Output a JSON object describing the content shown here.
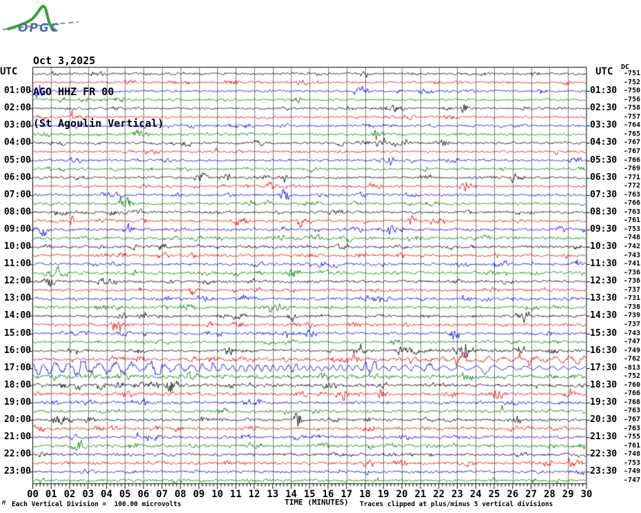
{
  "logo": {
    "text": "OPGC"
  },
  "header": {
    "date": "Oct 3,2025",
    "station": "AGO HHZ FR 00",
    "station_name": "(St Agoulin Vertical)"
  },
  "axis": {
    "utc_left": "UTC",
    "utc_right": "UTC",
    "dc_label": "DC",
    "x_title": "TIME (MINUTES)",
    "x_tick_labels": [
      "00",
      "01",
      "02",
      "03",
      "04",
      "05",
      "06",
      "07",
      "08",
      "09",
      "10",
      "11",
      "12",
      "13",
      "14",
      "15",
      "16",
      "17",
      "18",
      "19",
      "20",
      "21",
      "22",
      "23",
      "24",
      "25",
      "26",
      "27",
      "28",
      "29",
      "30"
    ]
  },
  "footer": {
    "scale_note": "Each Vertical Division =  100.00 microvolts",
    "clip_note": "Traces clipped at plus/minus 5 vertical divisions",
    "corner_mark": "M"
  },
  "colors": {
    "black": "#000000",
    "red": "#e60000",
    "blue": "#0000e0",
    "green": "#007700",
    "grid": "#7b7b7b",
    "border": "#000000",
    "logo_green": "#3aa03a",
    "logo_blue": "#4a6fa5",
    "logo_dash": "#7a8fa6"
  },
  "chart_data": {
    "type": "line",
    "kind": "helicorder",
    "title": "AGO HHZ FR 00 (St Agoulin Vertical) - Oct 3,2025",
    "x_axis": {
      "label": "TIME (MINUTES)",
      "min": 0,
      "max": 30,
      "minutes_per_line": 30
    },
    "amplitude_unit": "vertical divisions of 100.00 microvolts, clipped at +/-5",
    "traces": [
      {
        "start": "00:00",
        "left": "",
        "right": "",
        "dc": -751,
        "color": "black",
        "style": "noise",
        "profile": [
          [
            0,
            1.25
          ],
          [
            30,
            1.25
          ]
        ]
      },
      {
        "start": "00:30",
        "left": "",
        "right": "",
        "dc": -752,
        "color": "red",
        "style": "noise",
        "profile": [
          [
            0,
            1.2
          ],
          [
            30,
            1.2
          ]
        ]
      },
      {
        "start": "01:00",
        "left": "01:00",
        "right": "01:30",
        "dc": -750,
        "color": "blue",
        "style": "noise",
        "profile": [
          [
            0,
            1.25
          ],
          [
            30,
            1.25
          ]
        ]
      },
      {
        "start": "01:30",
        "left": "",
        "right": "",
        "dc": -756,
        "color": "green",
        "style": "noise",
        "profile": [
          [
            0,
            1.2
          ],
          [
            30,
            1.2
          ]
        ]
      },
      {
        "start": "02:00",
        "left": "02:00",
        "right": "02:30",
        "dc": -758,
        "color": "black",
        "style": "noise",
        "profile": [
          [
            0,
            1.2
          ],
          [
            30,
            1.2
          ]
        ]
      },
      {
        "start": "02:30",
        "left": "",
        "right": "",
        "dc": -757,
        "color": "red",
        "style": "noise",
        "profile": [
          [
            0,
            1.1
          ],
          [
            30,
            1.15
          ]
        ]
      },
      {
        "start": "03:00",
        "left": "03:00",
        "right": "03:30",
        "dc": -764,
        "color": "blue",
        "style": "noise",
        "profile": [
          [
            0,
            1.3
          ],
          [
            30,
            1.25
          ]
        ]
      },
      {
        "start": "03:30",
        "left": "",
        "right": "",
        "dc": -765,
        "color": "green",
        "style": "noise",
        "profile": [
          [
            0,
            1.25
          ],
          [
            30,
            1.2
          ]
        ]
      },
      {
        "start": "04:00",
        "left": "04:00",
        "right": "04:30",
        "dc": -767,
        "color": "black",
        "style": "noise",
        "profile": [
          [
            0,
            1.3
          ],
          [
            30,
            1.3
          ]
        ]
      },
      {
        "start": "04:30",
        "left": "",
        "right": "",
        "dc": -767,
        "color": "red",
        "style": "noise",
        "profile": [
          [
            0,
            1.2
          ],
          [
            30,
            1.2
          ]
        ]
      },
      {
        "start": "05:00",
        "left": "05:00",
        "right": "05:30",
        "dc": -766,
        "color": "blue",
        "style": "noise",
        "profile": [
          [
            0,
            1.25
          ],
          [
            30,
            1.3
          ]
        ]
      },
      {
        "start": "05:30",
        "left": "",
        "right": "",
        "dc": -769,
        "color": "green",
        "style": "noise",
        "profile": [
          [
            0,
            1.2
          ],
          [
            30,
            1.25
          ]
        ]
      },
      {
        "start": "06:00",
        "left": "06:00",
        "right": "06:30",
        "dc": -771,
        "color": "black",
        "style": "noise",
        "profile": [
          [
            0,
            1.35
          ],
          [
            30,
            1.3
          ]
        ]
      },
      {
        "start": "06:30",
        "left": "",
        "right": "",
        "dc": -772,
        "color": "red",
        "style": "noise",
        "profile": [
          [
            0,
            1.2
          ],
          [
            30,
            1.25
          ]
        ]
      },
      {
        "start": "07:00",
        "left": "07:00",
        "right": "07:30",
        "dc": -763,
        "color": "blue",
        "style": "noise",
        "profile": [
          [
            0,
            1.3
          ],
          [
            30,
            1.3
          ]
        ]
      },
      {
        "start": "07:30",
        "left": "",
        "right": "",
        "dc": -766,
        "color": "green",
        "style": "noise",
        "profile": [
          [
            0,
            1.3
          ],
          [
            30,
            1.35
          ]
        ]
      },
      {
        "start": "08:00",
        "left": "08:00",
        "right": "08:30",
        "dc": -763,
        "color": "black",
        "style": "noise",
        "profile": [
          [
            0,
            1.4
          ],
          [
            30,
            1.4
          ]
        ]
      },
      {
        "start": "08:30",
        "left": "",
        "right": "",
        "dc": -761,
        "color": "red",
        "style": "noise",
        "profile": [
          [
            0,
            1.35
          ],
          [
            30,
            1.4
          ]
        ]
      },
      {
        "start": "09:00",
        "left": "09:00",
        "right": "09:30",
        "dc": -753,
        "color": "blue",
        "style": "noise",
        "profile": [
          [
            0,
            1.45
          ],
          [
            30,
            1.5
          ]
        ]
      },
      {
        "start": "09:30",
        "left": "",
        "right": "",
        "dc": -748,
        "color": "green",
        "style": "noise",
        "profile": [
          [
            0,
            1.5
          ],
          [
            30,
            1.5
          ]
        ]
      },
      {
        "start": "10:00",
        "left": "10:00",
        "right": "10:30",
        "dc": -742,
        "color": "black",
        "style": "noise",
        "profile": [
          [
            0,
            1.5
          ],
          [
            30,
            1.55
          ]
        ]
      },
      {
        "start": "10:30",
        "left": "",
        "right": "",
        "dc": -743,
        "color": "red",
        "style": "noise",
        "profile": [
          [
            0,
            1.45
          ],
          [
            30,
            1.5
          ]
        ]
      },
      {
        "start": "11:00",
        "left": "11:00",
        "right": "11:30",
        "dc": -741,
        "color": "blue",
        "style": "noise",
        "profile": [
          [
            0,
            1.5
          ],
          [
            30,
            1.5
          ]
        ]
      },
      {
        "start": "11:30",
        "left": "",
        "right": "",
        "dc": -736,
        "color": "green",
        "style": "noise",
        "profile": [
          [
            0,
            1.55
          ],
          [
            30,
            1.5
          ]
        ]
      },
      {
        "start": "12:00",
        "left": "12:00",
        "right": "12:30",
        "dc": -736,
        "color": "black",
        "style": "noise",
        "profile": [
          [
            0,
            1.5
          ],
          [
            30,
            1.5
          ]
        ]
      },
      {
        "start": "12:30",
        "left": "",
        "right": "",
        "dc": -737,
        "color": "red",
        "style": "noise",
        "profile": [
          [
            0,
            1.45
          ],
          [
            30,
            1.5
          ]
        ]
      },
      {
        "start": "13:00",
        "left": "13:00",
        "right": "13:30",
        "dc": -731,
        "color": "blue",
        "style": "noise",
        "profile": [
          [
            0,
            1.5
          ],
          [
            30,
            1.5
          ]
        ]
      },
      {
        "start": "13:30",
        "left": "",
        "right": "",
        "dc": -738,
        "color": "green",
        "style": "noise",
        "profile": [
          [
            0,
            1.5
          ],
          [
            30,
            1.45
          ]
        ]
      },
      {
        "start": "14:00",
        "left": "14:00",
        "right": "14:30",
        "dc": -739,
        "color": "black",
        "style": "noise",
        "profile": [
          [
            0,
            1.45
          ],
          [
            30,
            1.45
          ]
        ]
      },
      {
        "start": "14:30",
        "left": "",
        "right": "",
        "dc": -737,
        "color": "red",
        "style": "noise",
        "profile": [
          [
            0,
            1.4
          ],
          [
            30,
            1.4
          ]
        ]
      },
      {
        "start": "15:00",
        "left": "15:00",
        "right": "15:30",
        "dc": -743,
        "color": "blue",
        "style": "noise",
        "profile": [
          [
            0,
            1.45
          ],
          [
            30,
            1.4
          ]
        ]
      },
      {
        "start": "15:30",
        "left": "",
        "right": "",
        "dc": -747,
        "color": "green",
        "style": "noise",
        "profile": [
          [
            0,
            1.4
          ],
          [
            30,
            1.4
          ]
        ]
      },
      {
        "start": "16:00",
        "left": "16:00",
        "right": "16:30",
        "dc": -749,
        "color": "black",
        "style": "noise",
        "profile": [
          [
            0,
            1.3
          ],
          [
            19.5,
            1.3
          ],
          [
            19.8,
            5.6
          ],
          [
            20.6,
            4.2
          ],
          [
            21.4,
            2.0
          ],
          [
            23,
            1.8
          ],
          [
            30,
            1.6
          ]
        ]
      },
      {
        "start": "16:30",
        "left": "",
        "right": "",
        "dc": -762,
        "color": "red",
        "style": "mix",
        "profile": [
          [
            0,
            1.6
          ],
          [
            14,
            1.7
          ],
          [
            19,
            2.2
          ],
          [
            22,
            3.1
          ],
          [
            25,
            3.8
          ],
          [
            28,
            4.4
          ],
          [
            30,
            4.7
          ]
        ]
      },
      {
        "start": "17:00",
        "left": "17:00",
        "right": "17:30",
        "dc": -813,
        "color": "blue",
        "style": "sine",
        "profile": [
          [
            0,
            8.4
          ],
          [
            3,
            7.0
          ],
          [
            6,
            6.0
          ],
          [
            10,
            5.0
          ],
          [
            15,
            4.2
          ],
          [
            20,
            3.4
          ],
          [
            25,
            3.0
          ],
          [
            30,
            2.7
          ]
        ]
      },
      {
        "start": "17:30",
        "left": "",
        "right": "",
        "dc": -752,
        "color": "green",
        "style": "noise",
        "profile": [
          [
            0,
            2.7
          ],
          [
            8,
            2.4
          ],
          [
            16,
            2.1
          ],
          [
            30,
            1.9
          ]
        ]
      },
      {
        "start": "18:00",
        "left": "18:00",
        "right": "18:30",
        "dc": -760,
        "color": "black",
        "style": "noise",
        "profile": [
          [
            0,
            2.0
          ],
          [
            30,
            1.7
          ]
        ]
      },
      {
        "start": "18:30",
        "left": "",
        "right": "",
        "dc": -766,
        "color": "red",
        "style": "noise",
        "profile": [
          [
            0,
            1.8
          ],
          [
            30,
            1.6
          ]
        ]
      },
      {
        "start": "19:00",
        "left": "19:00",
        "right": "19:30",
        "dc": -768,
        "color": "blue",
        "style": "noise",
        "profile": [
          [
            0,
            1.6
          ],
          [
            30,
            1.6
          ]
        ]
      },
      {
        "start": "19:30",
        "left": "",
        "right": "",
        "dc": -763,
        "color": "green",
        "style": "noise",
        "profile": [
          [
            0,
            1.55
          ],
          [
            30,
            1.55
          ]
        ]
      },
      {
        "start": "20:00",
        "left": "20:00",
        "right": "20:30",
        "dc": -767,
        "color": "black",
        "style": "noise",
        "profile": [
          [
            0,
            1.5
          ],
          [
            21,
            1.5
          ],
          [
            21.3,
            3.4
          ],
          [
            21.8,
            1.7
          ],
          [
            22.8,
            2.4
          ],
          [
            23.3,
            1.5
          ],
          [
            30,
            1.5
          ]
        ]
      },
      {
        "start": "20:30",
        "left": "",
        "right": "",
        "dc": -763,
        "color": "red",
        "style": "noise",
        "profile": [
          [
            0,
            1.5
          ],
          [
            30,
            1.5
          ]
        ]
      },
      {
        "start": "21:00",
        "left": "21:00",
        "right": "21:30",
        "dc": -755,
        "color": "blue",
        "style": "noise",
        "profile": [
          [
            0,
            1.6
          ],
          [
            30,
            1.55
          ]
        ]
      },
      {
        "start": "21:30",
        "left": "",
        "right": "",
        "dc": -761,
        "color": "green",
        "style": "noise",
        "profile": [
          [
            0,
            1.55
          ],
          [
            30,
            1.55
          ]
        ]
      },
      {
        "start": "22:00",
        "left": "22:00",
        "right": "22:30",
        "dc": -748,
        "color": "black",
        "style": "noise",
        "profile": [
          [
            0,
            1.5
          ],
          [
            30,
            1.5
          ]
        ]
      },
      {
        "start": "22:30",
        "left": "",
        "right": "",
        "dc": -753,
        "color": "red",
        "style": "noise",
        "profile": [
          [
            0,
            1.55
          ],
          [
            30,
            1.5
          ]
        ]
      },
      {
        "start": "23:00",
        "left": "23:00",
        "right": "23:30",
        "dc": -749,
        "color": "blue",
        "style": "noise",
        "profile": [
          [
            0,
            1.45
          ],
          [
            30,
            1.45
          ]
        ]
      },
      {
        "start": "23:30",
        "left": "",
        "right": "",
        "dc": -747,
        "color": "green",
        "style": "noise",
        "profile": [
          [
            0,
            1.45
          ],
          [
            30,
            1.4
          ]
        ]
      }
    ]
  }
}
